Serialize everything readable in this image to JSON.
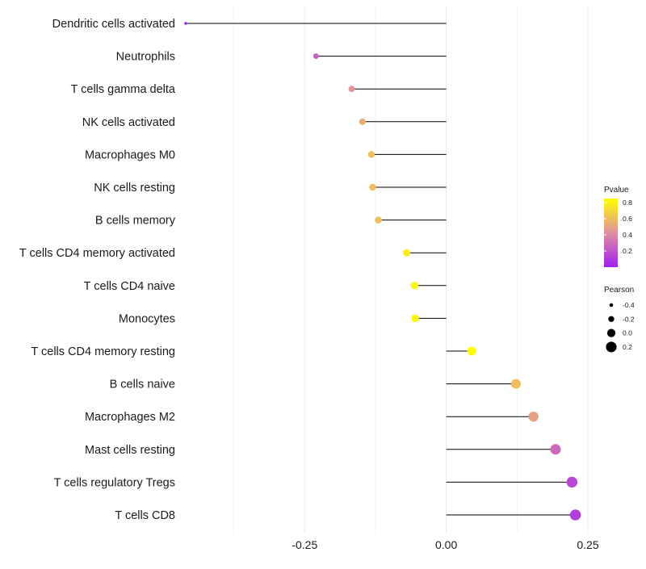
{
  "chart_data": {
    "type": "lollipop",
    "title": "",
    "xlabel": "",
    "ylabel": "",
    "xlim": [
      -0.46,
      0.26
    ],
    "x_ticks": [
      {
        "value": -0.25,
        "label": "-0.25"
      },
      {
        "value": 0.0,
        "label": "0.00"
      },
      {
        "value": 0.25,
        "label": "0.25"
      }
    ],
    "grid": true,
    "categories": [
      "Dendritic cells activated",
      "Neutrophils",
      "T cells gamma delta",
      "NK cells activated",
      "Macrophages M0",
      "NK cells resting",
      "B cells memory",
      "T cells CD4 memory activated",
      "T cells CD4 naive",
      "Monocytes",
      "T cells CD4 memory resting",
      "B cells naive",
      "Macrophages M2",
      "Mast cells resting",
      "T cells regulatory  Tregs",
      "T cells CD8"
    ],
    "pearson": [
      -0.46,
      -0.23,
      -0.167,
      -0.148,
      -0.132,
      -0.13,
      -0.12,
      -0.07,
      -0.056,
      -0.055,
      0.045,
      0.123,
      0.154,
      0.193,
      0.222,
      0.228
    ],
    "pvalue": [
      0.01,
      0.25,
      0.45,
      0.55,
      0.6,
      0.6,
      0.6,
      0.78,
      0.82,
      0.82,
      0.85,
      0.6,
      0.5,
      0.28,
      0.15,
      0.12
    ],
    "legend_pvalue": {
      "title": "Pvalue",
      "ticks": [
        {
          "value": 0.8,
          "label": "0.8"
        },
        {
          "value": 0.6,
          "label": "0.6"
        },
        {
          "value": 0.4,
          "label": "0.4"
        },
        {
          "value": 0.2,
          "label": "0.2"
        }
      ],
      "range": [
        0.0,
        0.85
      ],
      "colors": {
        "low": "#a020f0",
        "mid": "#e08fa0",
        "high": "#ffff00"
      }
    },
    "legend_pearson": {
      "title": "Pearson",
      "entries": [
        {
          "value": -0.4,
          "label": "-0.4"
        },
        {
          "value": -0.2,
          "label": "-0.2"
        },
        {
          "value": 0.0,
          "label": "0.0"
        },
        {
          "value": 0.2,
          "label": "0.2"
        }
      ]
    },
    "colors": {
      "stem": "#000000",
      "grid": "#ebebeb"
    }
  }
}
